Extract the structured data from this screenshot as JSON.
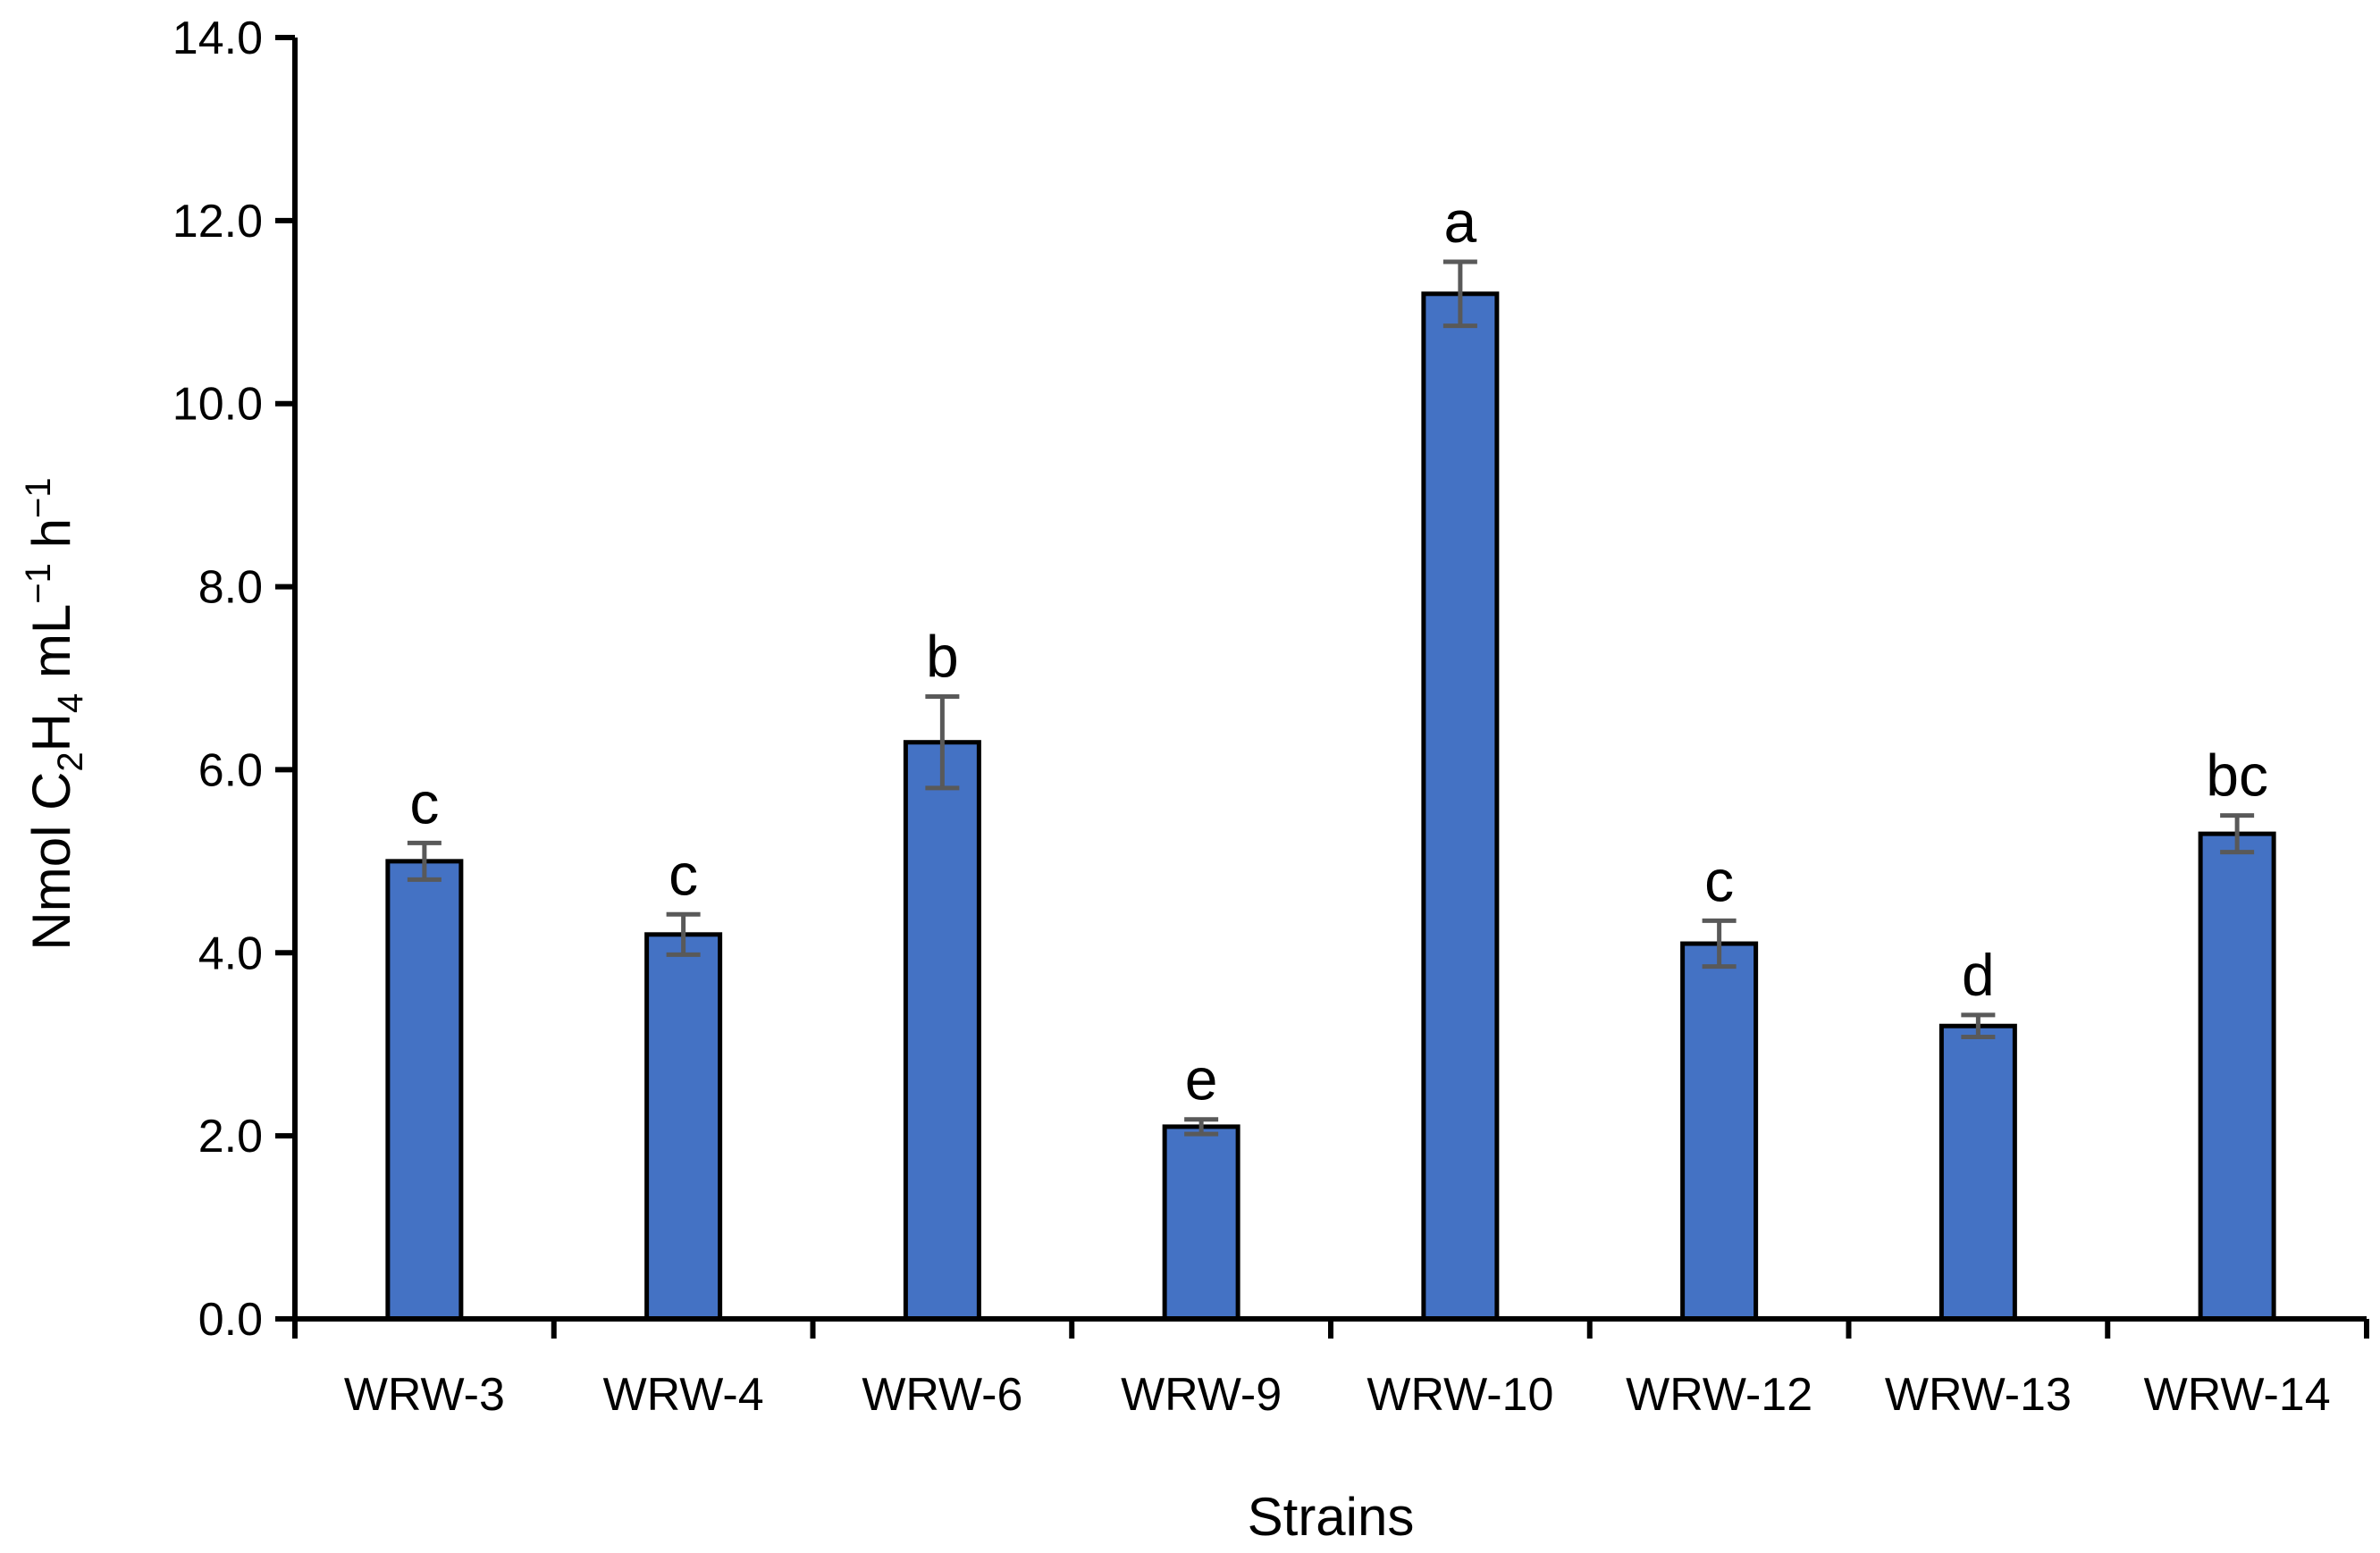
{
  "chart_data": {
    "type": "bar",
    "title": "",
    "xlabel": "Strains",
    "ylabel": {
      "prefix": "Nmol C",
      "sub1": "2",
      "mid1": "H",
      "sub2": "4",
      "mid2": " mL",
      "sup1": "−1",
      "mid3": " h",
      "sup2": "−1"
    },
    "ylim": [
      0,
      14
    ],
    "yticks": [
      "0.0",
      "2.0",
      "4.0",
      "6.0",
      "8.0",
      "10.0",
      "12.0",
      "14.0"
    ],
    "ytick_values": [
      0,
      2,
      4,
      6,
      8,
      10,
      12,
      14
    ],
    "grid": false,
    "legend": "none",
    "categories": [
      "WRW-3",
      "WRW-4",
      "WRW-6",
      "WRW-9",
      "WRW-10",
      "WRW-12",
      "WRW-13",
      "WRW-14"
    ],
    "values": [
      5.0,
      4.2,
      6.3,
      2.1,
      11.2,
      4.1,
      3.2,
      5.3
    ],
    "errors": [
      0.2,
      0.22,
      0.5,
      0.08,
      0.35,
      0.25,
      0.12,
      0.2
    ],
    "significance_letters": [
      "c",
      "c",
      "b",
      "e",
      "a",
      "c",
      "d",
      "bc"
    ],
    "colors": {
      "bar_fill": "#4472C4",
      "bar_stroke": "#000000",
      "error_bar": "#595959",
      "axis": "#000000"
    }
  }
}
